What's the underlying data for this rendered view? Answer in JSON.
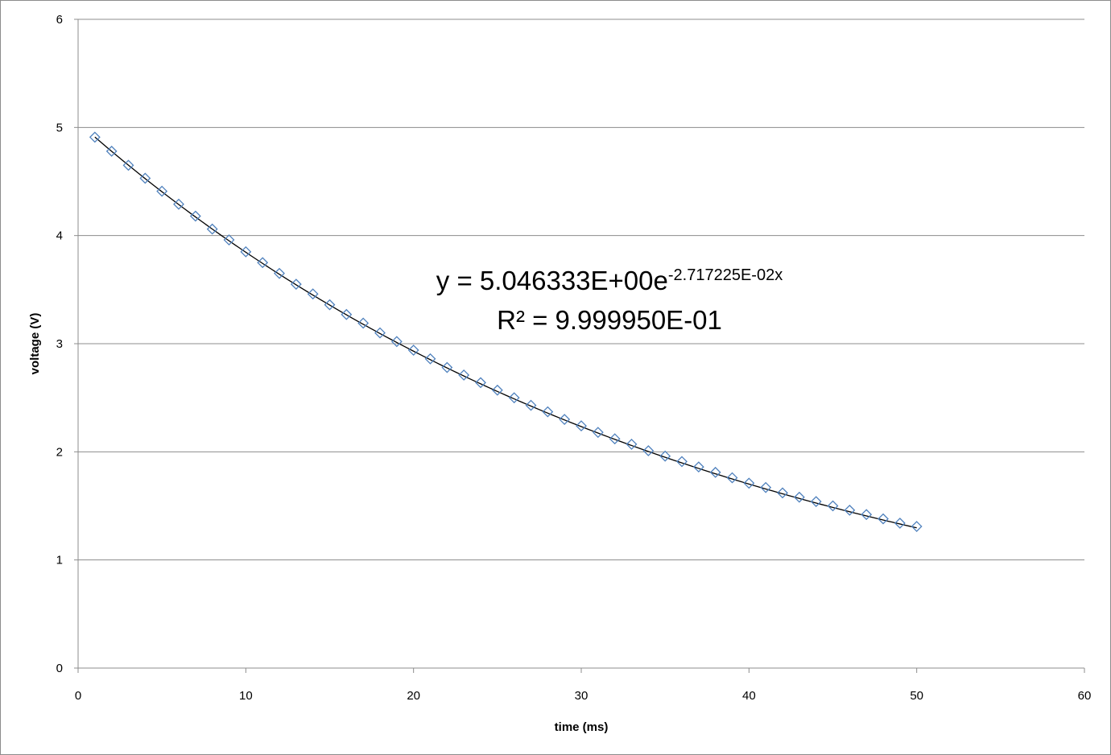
{
  "chart_data": {
    "type": "scatter",
    "xlabel": "time (ms)",
    "ylabel": "voltage (V)",
    "xlim": [
      0,
      60
    ],
    "ylim": [
      0,
      6
    ],
    "x_ticks": [
      "0",
      "10",
      "20",
      "30",
      "40",
      "50",
      "60"
    ],
    "y_ticks": [
      "0",
      "1",
      "2",
      "3",
      "4",
      "5",
      "6"
    ],
    "grid": "horizontal",
    "legend": "none",
    "marker": "diamond",
    "marker_color": "#4f81bd",
    "trendline": {
      "type": "exponential",
      "color": "#000000",
      "a": 5.046333,
      "b": -0.02717225,
      "x_range": [
        1,
        50
      ],
      "equation_prefix": "y = 5.046333E+00e",
      "equation_exponent": "-2.717225E-02x",
      "r_squared_label": "R² = 9.999950E-01"
    },
    "series": [
      {
        "x": [
          1,
          2,
          3,
          4,
          5,
          6,
          7,
          8,
          9,
          10,
          11,
          12,
          13,
          14,
          15,
          16,
          17,
          18,
          19,
          20,
          21,
          22,
          23,
          24,
          25,
          26,
          27,
          28,
          29,
          30,
          31,
          32,
          33,
          34,
          35,
          36,
          37,
          38,
          39,
          40,
          41,
          42,
          43,
          44,
          45,
          46,
          47,
          48,
          49,
          50
        ],
        "y": [
          4.91,
          4.78,
          4.65,
          4.53,
          4.41,
          4.29,
          4.18,
          4.06,
          3.96,
          3.85,
          3.75,
          3.65,
          3.55,
          3.46,
          3.36,
          3.27,
          3.19,
          3.1,
          3.02,
          2.94,
          2.86,
          2.78,
          2.71,
          2.64,
          2.57,
          2.5,
          2.43,
          2.37,
          2.3,
          2.24,
          2.18,
          2.12,
          2.07,
          2.01,
          1.96,
          1.91,
          1.86,
          1.81,
          1.76,
          1.71,
          1.67,
          1.62,
          1.58,
          1.54,
          1.5,
          1.46,
          1.42,
          1.38,
          1.34,
          1.31
        ]
      }
    ]
  }
}
